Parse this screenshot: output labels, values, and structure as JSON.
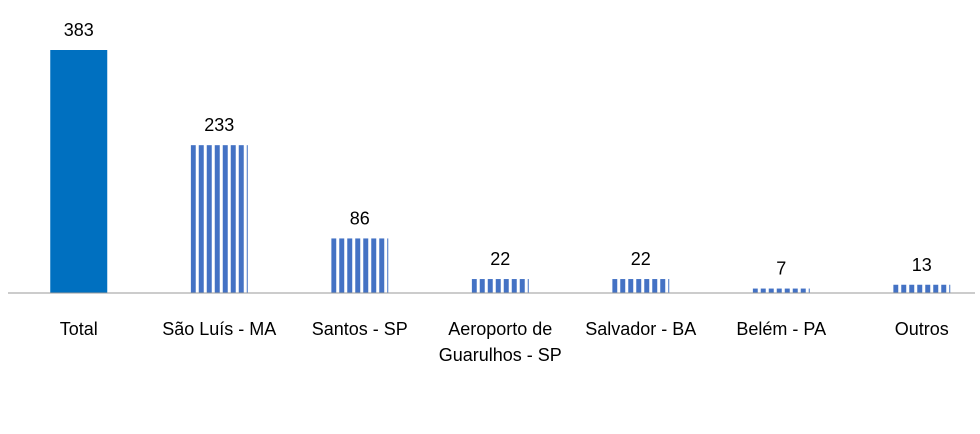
{
  "chart_data": {
    "type": "bar",
    "categories": [
      "Total",
      "São Luís - MA",
      "Santos - SP",
      "Aeroporto de Guarulhos - SP",
      "Salvador - BA",
      "Belém - PA",
      "Outros"
    ],
    "values": [
      383,
      233,
      86,
      22,
      22,
      7,
      13
    ],
    "colors": [
      "#0070C0",
      "#4472C4",
      "#4472C4",
      "#4472C4",
      "#4472C4",
      "#4472C4",
      "#4472C4"
    ],
    "patterns": [
      "solid",
      "vertical-stripes",
      "vertical-stripes",
      "vertical-stripes",
      "vertical-stripes",
      "vertical-stripes",
      "vertical-stripes"
    ]
  }
}
